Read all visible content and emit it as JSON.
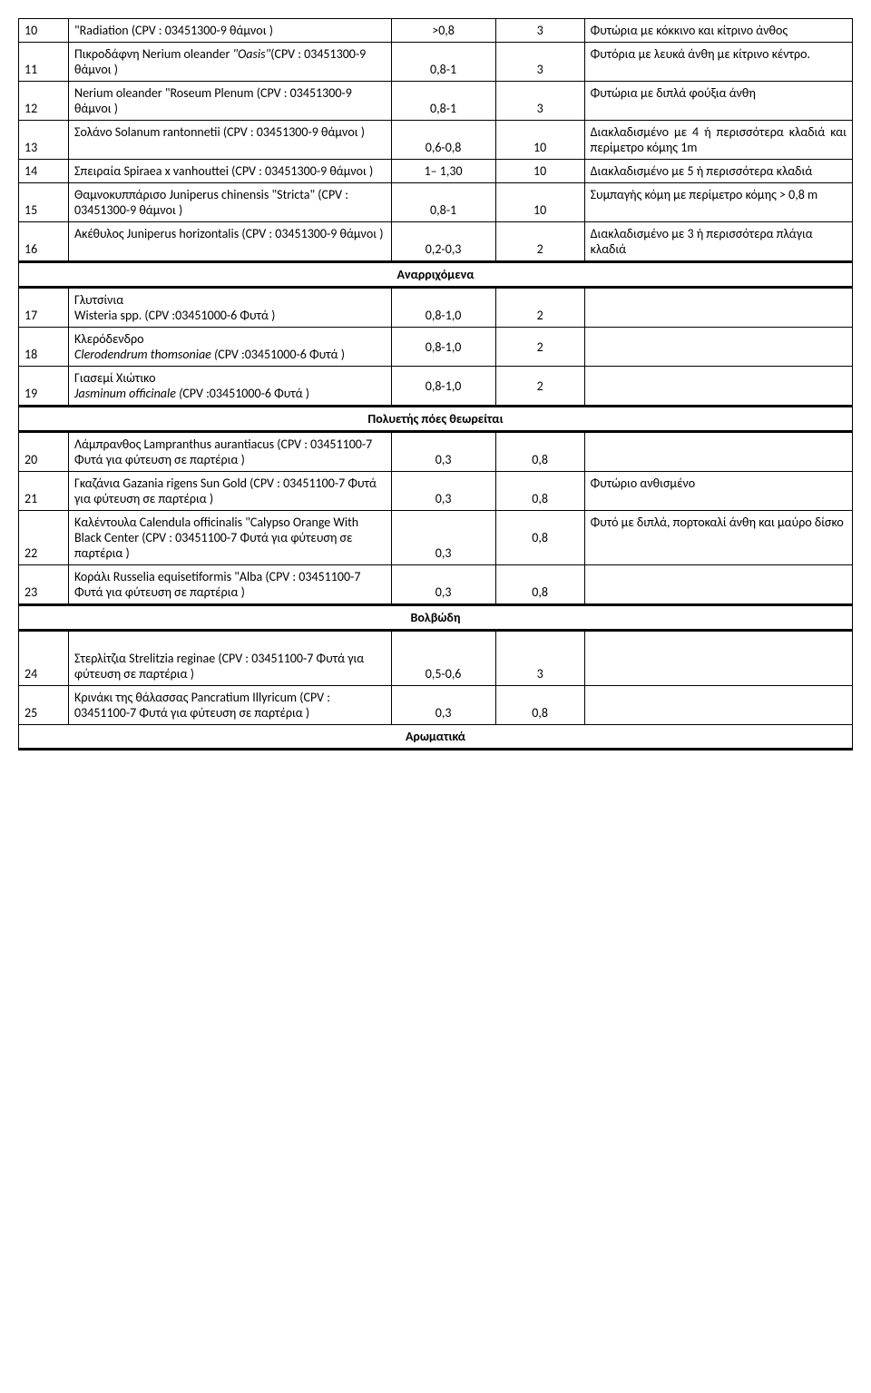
{
  "rows": [
    {
      "num": "10",
      "desc_pre": "\"Radiation (CPV : 03451300-9 θάμνοι )",
      "val1": ">0,8",
      "val2": "3",
      "notes": "Φυτώρια με κόκκινο και κίτρινο άνθος"
    },
    {
      "num": "11",
      "desc_pre": "Πικροδάφνη Nerium oleander ",
      "desc_italic": "\"Oasis\"",
      "desc_post": "(CPV : 03451300-9 θάμνοι )",
      "val1": "0,8-1",
      "val2": "3",
      "notes": "Φυτόρια με  λευκά άνθη με κίτρινο κέντρο."
    },
    {
      "num": "12",
      "desc_pre": "Nerium oleander \"Roseum Plenum (CPV : 03451300-9 θάμνοι )",
      "val1": "0,8-1",
      "val2": "3",
      "notes": "Φυτώρια με  διπλά φούξια άνθη"
    },
    {
      "num": "13",
      "desc_pre": "Σολάνο Solanum rantonnetii (CPV : 03451300-9 θάμνοι )",
      "val1": "0,6-0,8",
      "val2": "10",
      "notes": "Διακλαδισμένο με 4 ή περισσότερα κλαδιά και περίμετρο κόμης 1m",
      "notes_justify": true
    },
    {
      "num": "14",
      "desc_pre": "Σπειραία Spiraea x vanhouttei (CPV : 03451300-9 θάμνοι )",
      "val1": "1– 1,30",
      "val2": "10",
      "notes": "Διακλαδισμένο με 5 ή περισσότερα κλαδιά",
      "notes_justify": true
    },
    {
      "num": "15",
      "desc_pre": "Θαμνοκυππάρισο Juniperus chinensis \"Stricta\" (CPV : 03451300-9 θάμνοι )",
      "val1": "0,8-1",
      "val2": "10",
      "notes": "Συμπαγής κόμη με περίμετρο κόμης  > 0,8 m"
    },
    {
      "num": "16",
      "desc_pre": "Ακέθυλος Juniperus horizontalis (CPV : 03451300-9 θάμνοι )",
      "val1": "0,2-0,3",
      "val2": "2",
      "notes": "Διακλαδισμένο με 3 ή περισσότερα πλάγια κλαδιά"
    }
  ],
  "section1": "Αναρριχόμενα",
  "rows2": [
    {
      "num": "17",
      "desc_pre": "Γλυτσίνια\nWisteria spp. (CPV :03451000-6 Φυτά )",
      "val1": "0,8-1,0",
      "val2": "2",
      "notes": ""
    },
    {
      "num": "18",
      "desc_pre": "Κλερόδενδρο",
      "desc_italic_line": "Clerodendrum thomsoniae (",
      "desc_post": "CPV :03451000-6 Φυτά )",
      "val1": "0,8-1,0",
      "val2": "2",
      "notes": "",
      "val_mid": true
    },
    {
      "num": "19",
      "desc_pre": "Γιασεμί Χιώτικο",
      "desc_italic_line": "Jasminum officinale (",
      "desc_post": "CPV :03451000-6 Φυτά )",
      "val1": "0,8-1,0",
      "val2": "2",
      "notes": "",
      "val_mid": true
    }
  ],
  "section2": "Πολυετής πόες θεωρείται",
  "rows3": [
    {
      "num": "20",
      "desc_pre": "Λάμπρανθος Lampranthus aurantiacus (CPV : 03451100-7 Φυτά  για φύτευση σε παρτέρια )",
      "val1": "0,3",
      "val2": "0,8",
      "notes": ""
    },
    {
      "num": "21",
      "desc_pre": "Γκαζάνια Gazania rigens Sun Gold (CPV : 03451100-7 Φυτά  για φύτευση σε παρτέρια )",
      "val1": "0,3",
      "val2": "0,8",
      "notes": "Φυτώριο ανθισμένο"
    },
    {
      "num": "22",
      "desc_pre": "Καλέντουλα Calendula officinalis \"Calypso Orange With Black Center (CPV : 03451100-7 Φυτά  για φύτευση σε παρτέρια )",
      "val1": "0,3",
      "val2": "0,8",
      "notes": "Φυτό με διπλά, πορτοκαλί άνθη και μαύρο δίσκο",
      "val2_mid": true
    },
    {
      "num": "23",
      "desc_pre": "Κοράλι Russelia equisetiformis \"Alba (CPV : 03451100-7 Φυτά  για φύτευση σε παρτέρια )",
      "val1": "0,3",
      "val2": "0,8",
      "notes": ""
    }
  ],
  "section3": "Βολβώδη",
  "rows4": [
    {
      "num": "24",
      "desc_pre": "Στερλίτζια Strelitzia reginae (CPV : 03451100-7 Φυτά  για φύτευση σε παρτέρια )",
      "val1": "0,5-0,6",
      "val2": "3",
      "notes": "",
      "blank_top": true
    },
    {
      "num": "25",
      "desc_pre": "Κρινάκι  της  θάλασσας Pancratium Illyricum (CPV : 03451100-7 Φυτά  για φύτευση σε παρτέρια )",
      "val1": "0,3",
      "val2": "0,8",
      "notes": ""
    }
  ],
  "section4": "Αρωματικά"
}
